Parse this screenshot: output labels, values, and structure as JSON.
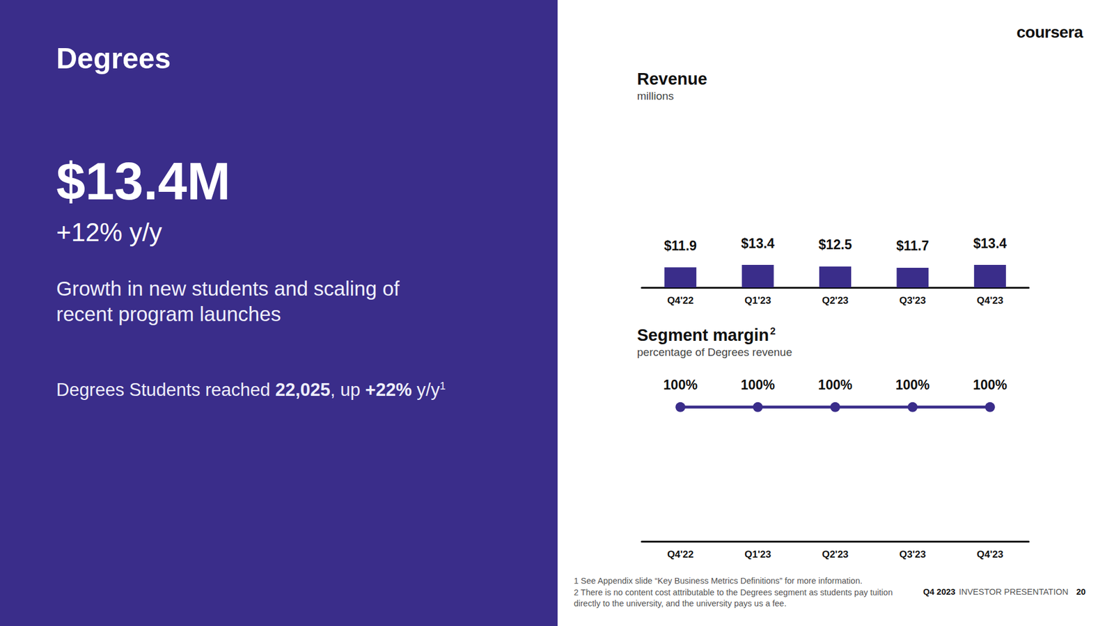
{
  "slide": {
    "title": "Degrees",
    "headline": "$13.4M",
    "growth": "+12% y/y",
    "description": [
      "Growth in new students and scaling of",
      "recent program launches"
    ],
    "students_note": [
      {
        "text": "Degrees Students reached "
      },
      {
        "text": "22,025",
        "bold": true
      },
      {
        "text": ", up "
      },
      {
        "text": "+22%",
        "bold": true
      },
      {
        "text": " y/y"
      },
      {
        "text": "1",
        "superscript": true
      }
    ],
    "logo": "coursera",
    "footnotes": [
      "1 See Appendix slide “Key Business Metrics Definitions” for more information.",
      "2 There is no content cost attributable to the Degrees segment as students pay tuition",
      "directly to the university, and the university pays us a fee."
    ],
    "footer": {
      "quarter": "Q4 2023",
      "label": "INVESTOR PRESENTATION",
      "page": "20"
    }
  },
  "chart_data": [
    {
      "type": "bar",
      "title": "Revenue",
      "subtitle": "millions",
      "categories": [
        "Q4'22",
        "Q1'23",
        "Q2'23",
        "Q3'23",
        "Q4'23"
      ],
      "values": [
        11.9,
        13.4,
        12.5,
        11.7,
        13.4
      ],
      "value_labels": [
        "$11.9",
        "$13.4",
        "$12.5",
        "$11.7",
        "$13.4"
      ],
      "color": "#3a2d8a",
      "ylim": [
        0,
        100
      ],
      "data_labels": true,
      "tick_labels": "x",
      "grid": false
    },
    {
      "type": "line",
      "title": "Segment margin",
      "title_note": "2",
      "subtitle": "percentage of Degrees revenue",
      "categories": [
        "Q4'22",
        "Q1'23",
        "Q2'23",
        "Q3'23",
        "Q4'23"
      ],
      "values": [
        100,
        100,
        100,
        100,
        100
      ],
      "value_labels": [
        "100%",
        "100%",
        "100%",
        "100%",
        "100%"
      ],
      "color": "#3a2d8a",
      "marker": "circle",
      "ylim": [
        0,
        120
      ],
      "data_labels": true,
      "tick_labels": "x",
      "grid": false
    }
  ]
}
